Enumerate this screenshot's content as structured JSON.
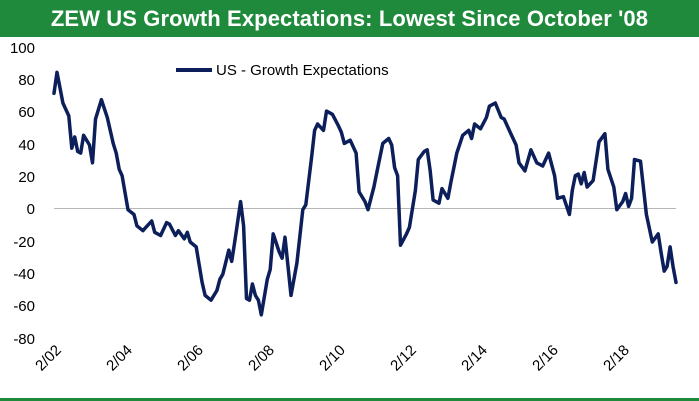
{
  "header": {
    "title": "ZEW US Growth Expectations: Lowest Since October '08"
  },
  "colors": {
    "banner": "#1f8a3b",
    "line": "#0d1f5a",
    "zero_line": "#b7b7b7"
  },
  "chart_data": {
    "type": "line",
    "title": "ZEW US Growth Expectations: Lowest Since October '08",
    "xlabel": "",
    "ylabel": "",
    "ylim": [
      -80,
      100
    ],
    "y_ticks": [
      "100",
      "80",
      "60",
      "40",
      "20",
      "0",
      "-20",
      "-40",
      "-60",
      "-80"
    ],
    "x_ticks": [
      "2/02",
      "2/04",
      "2/06",
      "2/08",
      "2/10",
      "2/12",
      "2/14",
      "2/16",
      "2/18"
    ],
    "xlim": [
      "2002-02",
      "2019-08"
    ],
    "legend": {
      "placement": "top-left",
      "entry": "US - Growth Expectations"
    },
    "grid": false,
    "series": [
      {
        "name": "US - Growth Expectations",
        "x": [
          "2002-02",
          "2002-03",
          "2002-05",
          "2002-07",
          "2002-08",
          "2002-09",
          "2002-10",
          "2002-11",
          "2002-12",
          "2003-02",
          "2003-03",
          "2003-04",
          "2003-06",
          "2003-08",
          "2003-10",
          "2003-11",
          "2003-12",
          "2004-01",
          "2004-03",
          "2004-05",
          "2004-06",
          "2004-08",
          "2004-09",
          "2004-11",
          "2004-12",
          "2005-02",
          "2005-04",
          "2005-05",
          "2005-07",
          "2005-08",
          "2005-10",
          "2005-11",
          "2005-12",
          "2006-02",
          "2006-04",
          "2006-05",
          "2006-07",
          "2006-09",
          "2006-10",
          "2006-11",
          "2007-01",
          "2007-02",
          "2007-03",
          "2007-05",
          "2007-06",
          "2007-07",
          "2007-08",
          "2007-09",
          "2007-10",
          "2007-11",
          "2007-12",
          "2008-02",
          "2008-03",
          "2008-04",
          "2008-06",
          "2008-07",
          "2008-08",
          "2008-10",
          "2008-12",
          "2009-02",
          "2009-03",
          "2009-05",
          "2009-06",
          "2009-07",
          "2009-09",
          "2009-10",
          "2009-12",
          "2010-02",
          "2010-03",
          "2010-04",
          "2010-06",
          "2010-08",
          "2010-09",
          "2010-11",
          "2010-12",
          "2011-02",
          "2011-03",
          "2011-05",
          "2011-07",
          "2011-08",
          "2011-09",
          "2011-10",
          "2011-11",
          "2012-01",
          "2012-02",
          "2012-04",
          "2012-05",
          "2012-07",
          "2012-08",
          "2012-09",
          "2012-10",
          "2012-12",
          "2013-01",
          "2013-03",
          "2013-04",
          "2013-06",
          "2013-08",
          "2013-10",
          "2013-11",
          "2013-12",
          "2014-02",
          "2014-04",
          "2014-05",
          "2014-07",
          "2014-09",
          "2014-10",
          "2014-12",
          "2015-02",
          "2015-03",
          "2015-05",
          "2015-07",
          "2015-09",
          "2015-11",
          "2016-01",
          "2016-03",
          "2016-04",
          "2016-06",
          "2016-08",
          "2016-09",
          "2016-10",
          "2016-11",
          "2016-12",
          "2017-01",
          "2017-02",
          "2017-04",
          "2017-06",
          "2017-08",
          "2017-09",
          "2017-11",
          "2017-12",
          "2018-02",
          "2018-03",
          "2018-04",
          "2018-05",
          "2018-06",
          "2018-08",
          "2018-10",
          "2018-12",
          "2019-02",
          "2019-03",
          "2019-04",
          "2019-05",
          "2019-06",
          "2019-07",
          "2019-08"
        ],
        "y": [
          72,
          85,
          66,
          58,
          38,
          45,
          36,
          35,
          46,
          40,
          29,
          56,
          68,
          57,
          41,
          35,
          25,
          21,
          0,
          -3,
          -10,
          -13,
          -11,
          -7,
          -14,
          -16,
          -8,
          -9,
          -16,
          -13,
          -18,
          -14,
          -20,
          -23,
          -45,
          -53,
          -56,
          -50,
          -43,
          -40,
          -25,
          -32,
          -20,
          5,
          -10,
          -55,
          -56,
          -46,
          -53,
          -56,
          -65,
          -43,
          -37,
          -15,
          -26,
          -30,
          -17,
          -53,
          -33,
          0,
          3,
          33,
          49,
          53,
          49,
          61,
          59,
          52,
          48,
          41,
          43,
          35,
          11,
          5,
          0,
          14,
          23,
          41,
          44,
          40,
          26,
          21,
          -22,
          -15,
          -11,
          12,
          31,
          36,
          37,
          24,
          6,
          4,
          13,
          7,
          17,
          35,
          46,
          49,
          44,
          53,
          50,
          57,
          64,
          66,
          57,
          56,
          48,
          40,
          29,
          24,
          37,
          29,
          27,
          35,
          21,
          7,
          8,
          -3,
          12,
          21,
          22,
          16,
          23,
          14,
          18,
          42,
          47,
          25,
          14,
          0,
          5,
          10,
          2,
          7,
          31,
          30,
          -3,
          -20,
          -15,
          -27,
          -38,
          -35,
          -23,
          -35,
          -45
        ]
      }
    ]
  }
}
